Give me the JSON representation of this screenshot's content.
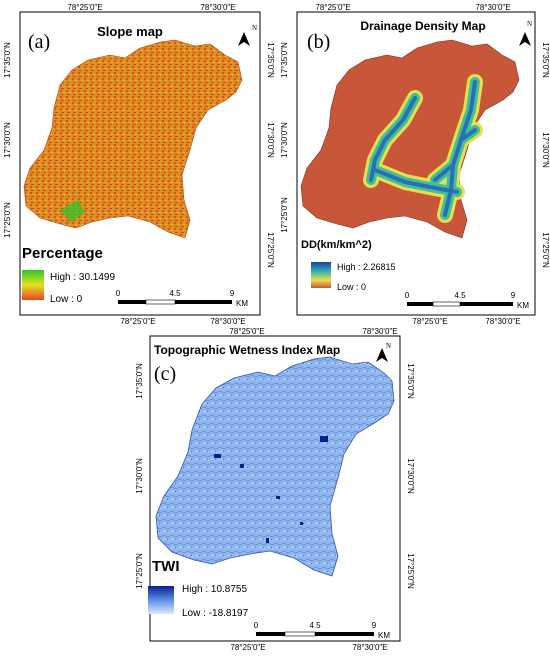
{
  "panels": [
    {
      "id": "a",
      "letter": "(a)",
      "title": "Slope map",
      "coords": {
        "top": [
          "78°25'0\"E",
          "78°30'0\"E"
        ],
        "bottom": [
          "78°25'0\"E",
          "78°30'0\"E"
        ],
        "left": [
          "17°35'0\"N",
          "17°30'0\"N",
          "17°25'0\"N"
        ],
        "right": [
          "17°35'0\"N",
          "17°30'0\"N",
          "17°25'0\"N"
        ]
      },
      "legend": {
        "title": "Percentage",
        "high": "High : 30.1499",
        "low": "Low : 0",
        "colors": [
          "#2ec42e",
          "#e4e41e",
          "#e8412a"
        ]
      },
      "scale": {
        "ticks": [
          "0",
          "4.5",
          "9"
        ],
        "unit": "KM"
      },
      "north": "N"
    },
    {
      "id": "b",
      "letter": "(b)",
      "title": "Drainage Density Map",
      "coords": {
        "top": [
          "78°25'0\"E",
          "78°30'0\"E"
        ],
        "bottom": [
          "78°25'0\"E",
          "78°30'0\"E"
        ],
        "left": [
          "17°35'0\"N",
          "17°30'0\"N",
          "17°25'0\"N"
        ],
        "right": [
          "17°35'0\"N",
          "17°30'0\"N",
          "17°25'0\"N"
        ]
      },
      "legend": {
        "title": "DD(km/km^2)",
        "high": "High : 2.26815",
        "low": "Low : 0",
        "colors": [
          "#1e3f9c",
          "#2fb0b8",
          "#e8e04a",
          "#c8573a"
        ]
      },
      "scale": {
        "ticks": [
          "0",
          "4.5",
          "9"
        ],
        "unit": "KM"
      },
      "north": "N"
    },
    {
      "id": "c",
      "letter": "(c)",
      "title": "Topographic Wetness Index Map",
      "coords": {
        "top": [
          "78°25'0\"E",
          "78°30'0\"E"
        ],
        "bottom": [
          "78°25'0\"E",
          "78°30'0\"E"
        ],
        "left": [
          "17°35'0\"N",
          "17°30'0\"N",
          "17°25'0\"N"
        ],
        "right": [
          "17°35'0\"N",
          "17°30'0\"N",
          "17°25'0\"N"
        ]
      },
      "legend": {
        "title": "TWI",
        "high": "High : 10.8755",
        "low": "Low : -18.8197",
        "colors": [
          "#0a1f8c",
          "#5b8fe6",
          "#dce9fb"
        ]
      },
      "scale": {
        "ticks": [
          "0",
          "4.5",
          "9"
        ],
        "unit": "KM"
      },
      "north": "N"
    }
  ]
}
